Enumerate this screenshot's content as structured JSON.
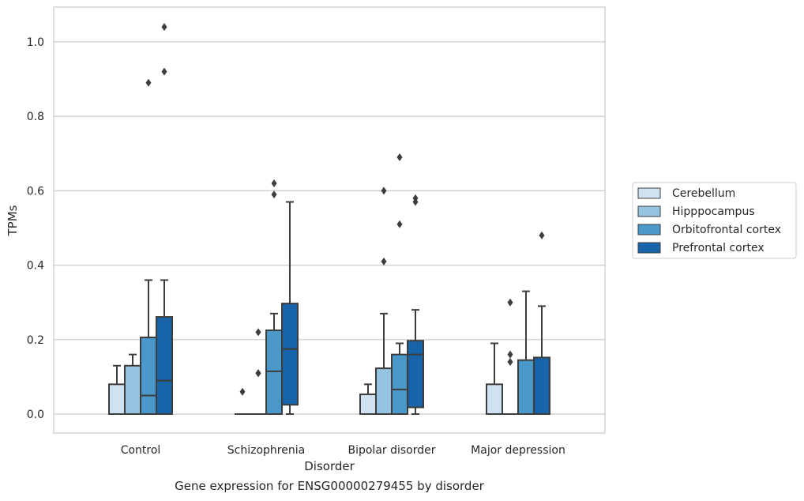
{
  "caption": "Gene expression for ENSG00000279455 by disorder",
  "chart_data": {
    "type": "box",
    "title": "",
    "xlabel": "Disorder",
    "ylabel": "TPMs",
    "ylim": [
      -0.05,
      1.09
    ],
    "yticks": [
      0.0,
      0.2,
      0.4,
      0.6,
      0.8,
      1.0
    ],
    "ytick_labels": [
      "0.0",
      "0.2",
      "0.4",
      "0.6",
      "0.8",
      "1.0"
    ],
    "categories": [
      "Control",
      "Schizophrenia",
      "Bipolar disorder",
      "Major depression"
    ],
    "grid": "horizontal",
    "legend_position": "right",
    "series": [
      {
        "name": "Cerebellum",
        "color": "#d0e1f2",
        "boxes": [
          {
            "whislo": 0.0,
            "q1": 0.0,
            "med": 0.0,
            "q3": 0.08,
            "whishi": 0.13,
            "fliers": []
          },
          {
            "whislo": 0.0,
            "q1": 0.0,
            "med": 0.0,
            "q3": 0.0,
            "whishi": 0.0,
            "fliers": [
              0.06
            ]
          },
          {
            "whislo": 0.0,
            "q1": 0.0,
            "med": 0.0,
            "q3": 0.053,
            "whishi": 0.08,
            "fliers": []
          },
          {
            "whislo": 0.0,
            "q1": 0.0,
            "med": 0.0,
            "q3": 0.08,
            "whishi": 0.19,
            "fliers": []
          }
        ]
      },
      {
        "name": "Hipppocampus",
        "color": "#94c4df",
        "boxes": [
          {
            "whislo": 0.0,
            "q1": 0.0,
            "med": 0.0,
            "q3": 0.13,
            "whishi": 0.16,
            "fliers": []
          },
          {
            "whislo": 0.0,
            "q1": 0.0,
            "med": 0.0,
            "q3": 0.0,
            "whishi": 0.0,
            "fliers": [
              0.22,
              0.11,
              0.11
            ]
          },
          {
            "whislo": 0.0,
            "q1": 0.0,
            "med": 0.0,
            "q3": 0.123,
            "whishi": 0.27,
            "fliers": [
              0.6,
              0.41
            ]
          },
          {
            "whislo": 0.0,
            "q1": 0.0,
            "med": 0.0,
            "q3": 0.0,
            "whishi": 0.0,
            "fliers": [
              0.3,
              0.16,
              0.14
            ]
          }
        ]
      },
      {
        "name": "Orbitofrontal cortex",
        "color": "#4a98c9",
        "boxes": [
          {
            "whislo": 0.0,
            "q1": 0.0,
            "med": 0.05,
            "q3": 0.206,
            "whishi": 0.36,
            "fliers": [
              0.89
            ]
          },
          {
            "whislo": 0.0,
            "q1": 0.0,
            "med": 0.115,
            "q3": 0.225,
            "whishi": 0.27,
            "fliers": [
              0.62,
              0.59
            ]
          },
          {
            "whislo": 0.0,
            "q1": 0.0,
            "med": 0.066,
            "q3": 0.16,
            "whishi": 0.19,
            "fliers": [
              0.69,
              0.51
            ]
          },
          {
            "whislo": 0.0,
            "q1": 0.0,
            "med": 0.0,
            "q3": 0.145,
            "whishi": 0.33,
            "fliers": []
          }
        ]
      },
      {
        "name": "Prefrontal cortex",
        "color": "#1764ab",
        "boxes": [
          {
            "whislo": 0.0,
            "q1": 0.0,
            "med": 0.09,
            "q3": 0.261,
            "whishi": 0.36,
            "fliers": [
              1.04,
              0.92
            ]
          },
          {
            "whislo": 0.0,
            "q1": 0.025,
            "med": 0.175,
            "q3": 0.297,
            "whishi": 0.57,
            "fliers": []
          },
          {
            "whislo": 0.0,
            "q1": 0.018,
            "med": 0.16,
            "q3": 0.197,
            "whishi": 0.28,
            "fliers": [
              0.58,
              0.57
            ]
          },
          {
            "whislo": 0.0,
            "q1": 0.0,
            "med": 0.0,
            "q3": 0.152,
            "whishi": 0.29,
            "fliers": [
              0.48
            ]
          }
        ]
      }
    ]
  }
}
